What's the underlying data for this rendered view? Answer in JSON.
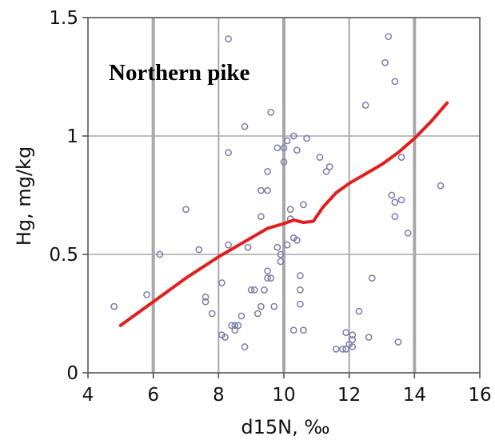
{
  "chart_data": {
    "type": "scatter",
    "annotation": "Northern pike",
    "xlabel": "d15N, ‰",
    "ylabel": "Hg, mg/kg",
    "xlim": [
      4,
      16
    ],
    "ylim": [
      0,
      1.5
    ],
    "x_ticks": [
      "4",
      "6",
      "8",
      "10",
      "12",
      "14",
      "16"
    ],
    "y_ticks": [
      "0",
      "0.5",
      "1",
      "1.5"
    ],
    "grid": "on",
    "colors": {
      "points": "#7a7fa6",
      "trend": "#e0201f",
      "grid": "#a8a8a8"
    },
    "series": [
      {
        "type": "scatter",
        "points": [
          [
            4.8,
            0.28
          ],
          [
            5.8,
            0.33
          ],
          [
            6.2,
            0.5
          ],
          [
            7.0,
            0.69
          ],
          [
            7.4,
            0.52
          ],
          [
            7.6,
            0.32
          ],
          [
            7.6,
            0.3
          ],
          [
            7.8,
            0.25
          ],
          [
            8.1,
            0.38
          ],
          [
            8.1,
            0.16
          ],
          [
            8.2,
            0.15
          ],
          [
            8.3,
            1.41
          ],
          [
            8.3,
            0.93
          ],
          [
            8.3,
            0.54
          ],
          [
            8.4,
            0.2
          ],
          [
            8.5,
            0.18
          ],
          [
            8.5,
            0.2
          ],
          [
            8.6,
            0.2
          ],
          [
            8.7,
            0.24
          ],
          [
            8.8,
            1.04
          ],
          [
            8.8,
            0.11
          ],
          [
            8.9,
            0.53
          ],
          [
            9.0,
            0.35
          ],
          [
            9.1,
            0.35
          ],
          [
            9.2,
            0.25
          ],
          [
            9.3,
            0.77
          ],
          [
            9.3,
            0.66
          ],
          [
            9.3,
            0.28
          ],
          [
            9.4,
            0.35
          ],
          [
            9.5,
            0.77
          ],
          [
            9.5,
            0.85
          ],
          [
            9.5,
            0.43
          ],
          [
            9.5,
            0.4
          ],
          [
            9.6,
            1.1
          ],
          [
            9.6,
            0.4
          ],
          [
            9.7,
            0.28
          ],
          [
            9.8,
            0.95
          ],
          [
            9.8,
            0.53
          ],
          [
            9.9,
            0.5
          ],
          [
            9.9,
            0.47
          ],
          [
            10.0,
            0.95
          ],
          [
            10.0,
            0.89
          ],
          [
            10.1,
            0.98
          ],
          [
            10.1,
            0.54
          ],
          [
            10.2,
            0.69
          ],
          [
            10.2,
            0.65
          ],
          [
            10.3,
            1.0
          ],
          [
            10.3,
            0.57
          ],
          [
            10.3,
            0.18
          ],
          [
            10.4,
            0.94
          ],
          [
            10.4,
            0.56
          ],
          [
            10.5,
            0.41
          ],
          [
            10.5,
            0.35
          ],
          [
            10.5,
            0.29
          ],
          [
            10.6,
            0.18
          ],
          [
            10.6,
            0.71
          ],
          [
            10.7,
            0.99
          ],
          [
            11.1,
            0.91
          ],
          [
            11.3,
            0.85
          ],
          [
            11.4,
            0.87
          ],
          [
            11.6,
            0.1
          ],
          [
            11.8,
            0.1
          ],
          [
            11.9,
            0.1
          ],
          [
            11.9,
            0.17
          ],
          [
            12.0,
            0.12
          ],
          [
            12.1,
            0.16
          ],
          [
            12.1,
            0.14
          ],
          [
            12.1,
            0.11
          ],
          [
            12.3,
            0.26
          ],
          [
            12.5,
            1.13
          ],
          [
            12.6,
            0.15
          ],
          [
            12.7,
            0.4
          ],
          [
            13.1,
            1.31
          ],
          [
            13.2,
            1.42
          ],
          [
            13.3,
            0.75
          ],
          [
            13.4,
            1.23
          ],
          [
            13.4,
            0.72
          ],
          [
            13.4,
            0.66
          ],
          [
            13.5,
            0.13
          ],
          [
            13.6,
            0.91
          ],
          [
            13.6,
            0.73
          ],
          [
            13.8,
            0.59
          ],
          [
            14.8,
            0.79
          ]
        ]
      },
      {
        "type": "line",
        "points": [
          [
            5.0,
            0.2
          ],
          [
            6.0,
            0.3
          ],
          [
            7.0,
            0.4
          ],
          [
            8.0,
            0.49
          ],
          [
            9.0,
            0.57
          ],
          [
            9.5,
            0.61
          ],
          [
            10.0,
            0.63
          ],
          [
            10.3,
            0.645
          ],
          [
            10.6,
            0.635
          ],
          [
            10.9,
            0.64
          ],
          [
            11.2,
            0.7
          ],
          [
            11.6,
            0.76
          ],
          [
            12.0,
            0.8
          ],
          [
            12.5,
            0.84
          ],
          [
            13.0,
            0.88
          ],
          [
            13.5,
            0.93
          ],
          [
            14.0,
            0.99
          ],
          [
            14.5,
            1.06
          ],
          [
            15.0,
            1.14
          ]
        ]
      }
    ]
  }
}
